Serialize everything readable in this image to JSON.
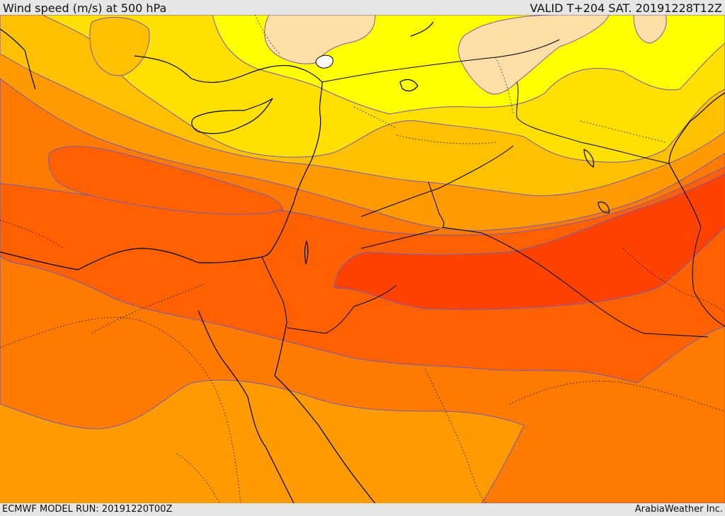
{
  "header": {
    "title": "Wind speed (m/s) at 500 hPa",
    "valid": "VALID T+204 SAT. 20191228T12Z"
  },
  "footer": {
    "model_run": "ECMWF MODEL RUN: 20191220T00Z",
    "credit": "ArabiaWeather Inc."
  },
  "map": {
    "variable": "Wind speed at 500 hPa",
    "level_colors": {
      "calm": "#ffffff",
      "light": "#ffdfa8",
      "yellow": "#ffff00",
      "gold": "#ffe000",
      "amber": "#ffc000",
      "orange": "#ff9a00",
      "dark_orange": "#ff7a00",
      "red_orange": "#ff6000",
      "red": "#ff4200"
    },
    "boundary_color": "#000000",
    "contour_color": "#7b5aa6"
  }
}
